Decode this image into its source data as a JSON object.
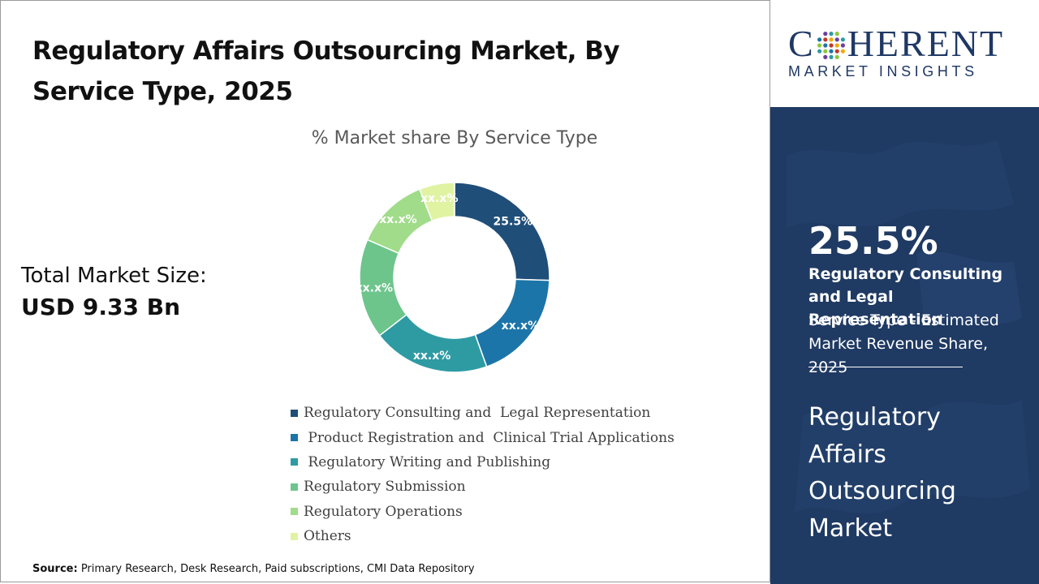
{
  "title": "Regulatory Affairs Outsourcing Market, By Service Type, 2025",
  "total": {
    "label": "Total Market Size:",
    "value": "USD 9.33 Bn"
  },
  "source": {
    "label": "Source:",
    "text": " Primary Research, Desk Research, Paid subscriptions, CMI Data Repository"
  },
  "brand": {
    "logo_main": "COHERENT",
    "logo_sub": "MARKET INSIGHTS",
    "logo_color": "#1f3864"
  },
  "highlight": {
    "value": "25.5%",
    "name": "Regulatory Consulting and  Legal Representation",
    "description": "Service Type - Estimated Market Revenue Share, 2025",
    "market": "Regulatory Affairs Outsourcing Market",
    "panel_color": "#1f3a63"
  },
  "chart_data": {
    "type": "pie",
    "variant": "donut",
    "title": "% Market share By Service Type",
    "legend_position": "bottom",
    "series": [
      {
        "name": "Regulatory Consulting and  Legal Representation",
        "label": "25.5%",
        "value": 25.5,
        "color": "#1f4e79"
      },
      {
        "name": " Product Registration and  Clinical Trial Applications",
        "label": "xx.x%",
        "value": 19,
        "color": "#1c75a8"
      },
      {
        "name": " Regulatory Writing and Publishing",
        "label": "xx.x%",
        "value": 20,
        "color": "#2e9ba3"
      },
      {
        "name": "Regulatory Submission",
        "label": "xx.x%",
        "value": 17,
        "color": "#6dc58c"
      },
      {
        "name": "Regulatory Operations",
        "label": "xx.x%",
        "value": 12.5,
        "color": "#a0dc8a"
      },
      {
        "name": "Others",
        "label": "xx.x%",
        "value": 6,
        "color": "#e0f3a3"
      }
    ]
  }
}
